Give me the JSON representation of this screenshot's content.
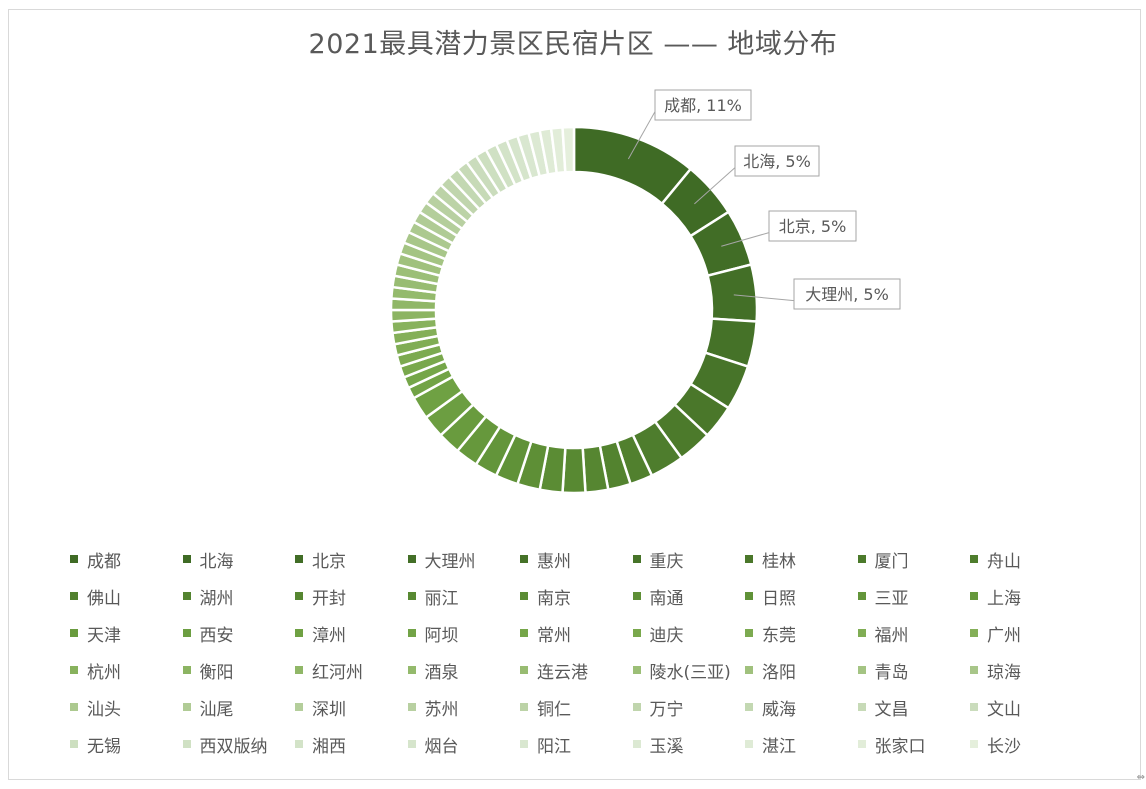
{
  "chart_data": {
    "type": "donut",
    "title": "2021最具潜力景区民宿片区 —— 地域分布",
    "legend_position": "bottom",
    "slices": [
      {
        "label": "成都",
        "value": 11,
        "color": "#3f6b25"
      },
      {
        "label": "北海",
        "value": 5,
        "color": "#3f6b25"
      },
      {
        "label": "北京",
        "value": 5,
        "color": "#416d26"
      },
      {
        "label": "大理州",
        "value": 5,
        "color": "#436f27"
      },
      {
        "label": "惠州",
        "value": 4,
        "color": "#457228"
      },
      {
        "label": "重庆",
        "value": 4,
        "color": "#477429"
      },
      {
        "label": "桂林",
        "value": 3,
        "color": "#4a772a"
      },
      {
        "label": "厦门",
        "value": 3,
        "color": "#4c7a2b"
      },
      {
        "label": "舟山",
        "value": 3,
        "color": "#4e7d2d"
      },
      {
        "label": "佛山",
        "value": 2,
        "color": "#51802e"
      },
      {
        "label": "湖州",
        "value": 2,
        "color": "#53832f"
      },
      {
        "label": "开封",
        "value": 2,
        "color": "#568631"
      },
      {
        "label": "丽江",
        "value": 2,
        "color": "#588932"
      },
      {
        "label": "南京",
        "value": 2,
        "color": "#5b8c34"
      },
      {
        "label": "南通",
        "value": 2,
        "color": "#5e8f36"
      },
      {
        "label": "日照",
        "value": 2,
        "color": "#609238"
      },
      {
        "label": "三亚",
        "value": 2,
        "color": "#63953a"
      },
      {
        "label": "上海",
        "value": 2,
        "color": "#66983c"
      },
      {
        "label": "天津",
        "value": 2,
        "color": "#699b3e"
      },
      {
        "label": "西安",
        "value": 2,
        "color": "#6c9e41"
      },
      {
        "label": "漳州",
        "value": 2,
        "color": "#6fa143"
      },
      {
        "label": "阿坝",
        "value": 1,
        "color": "#72a346"
      },
      {
        "label": "常州",
        "value": 1,
        "color": "#75a649"
      },
      {
        "label": "迪庆",
        "value": 1,
        "color": "#79a84c"
      },
      {
        "label": "东莞",
        "value": 1,
        "color": "#7caa50"
      },
      {
        "label": "福州",
        "value": 1,
        "color": "#80ad54"
      },
      {
        "label": "广州",
        "value": 1,
        "color": "#84af58"
      },
      {
        "label": "杭州",
        "value": 1,
        "color": "#88b25d"
      },
      {
        "label": "衡阳",
        "value": 1,
        "color": "#8cb462"
      },
      {
        "label": "红河州",
        "value": 1,
        "color": "#90b767"
      },
      {
        "label": "酒泉",
        "value": 1,
        "color": "#94ba6c"
      },
      {
        "label": "连云港",
        "value": 1,
        "color": "#98bc72"
      },
      {
        "label": "陵水(三亚)",
        "value": 1,
        "color": "#9cbf77"
      },
      {
        "label": "洛阳",
        "value": 1,
        "color": "#a0c17d"
      },
      {
        "label": "青岛",
        "value": 1,
        "color": "#a4c483"
      },
      {
        "label": "琼海",
        "value": 1,
        "color": "#a8c689"
      },
      {
        "label": "汕头",
        "value": 1,
        "color": "#acc98f"
      },
      {
        "label": "汕尾",
        "value": 1,
        "color": "#b0cb95"
      },
      {
        "label": "深圳",
        "value": 1,
        "color": "#b4ce9b"
      },
      {
        "label": "苏州",
        "value": 1,
        "color": "#b8d0a1"
      },
      {
        "label": "铜仁",
        "value": 1,
        "color": "#bcd3a7"
      },
      {
        "label": "万宁",
        "value": 1,
        "color": "#c0d5ad"
      },
      {
        "label": "威海",
        "value": 1,
        "color": "#c3d8b2"
      },
      {
        "label": "文昌",
        "value": 1,
        "color": "#c7dab7"
      },
      {
        "label": "文山",
        "value": 1,
        "color": "#cadcbc"
      },
      {
        "label": "无锡",
        "value": 1,
        "color": "#cddfc0"
      },
      {
        "label": "西双版纳",
        "value": 1,
        "color": "#d0e1c4"
      },
      {
        "label": "湘西",
        "value": 1,
        "color": "#d3e3c8"
      },
      {
        "label": "烟台",
        "value": 1,
        "color": "#d6e5cc"
      },
      {
        "label": "阳江",
        "value": 1,
        "color": "#d9e7d0"
      },
      {
        "label": "玉溪",
        "value": 1,
        "color": "#dce9d3"
      },
      {
        "label": "湛江",
        "value": 1,
        "color": "#dfebd6"
      },
      {
        "label": "张家口",
        "value": 1,
        "color": "#e2edd9"
      },
      {
        "label": "长沙",
        "value": 1,
        "color": "#e5efdc"
      }
    ],
    "data_labels": [
      {
        "text": "成都, 11%"
      },
      {
        "text": "北海, 5%"
      },
      {
        "text": "北京, 5%"
      },
      {
        "text": "大理州, 5%"
      }
    ]
  }
}
